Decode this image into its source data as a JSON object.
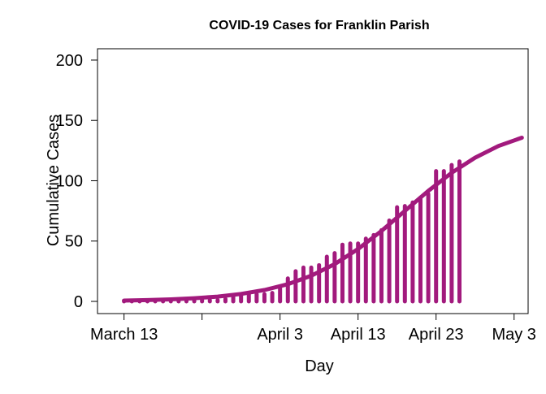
{
  "chart_data": {
    "type": "line",
    "title": "COVID-19 Cases for Franklin Parish",
    "x_label": "Day",
    "y_label": "Cumulative Cases",
    "xlim": [
      -3.4,
      51.8
    ],
    "ylim": [
      -10.1,
      209.4
    ],
    "xticks": [
      {
        "value": 0,
        "label": "March 13"
      },
      {
        "value": 10,
        "label": null
      },
      {
        "value": 20,
        "label": "April 3"
      },
      {
        "value": 30,
        "label": "April 13"
      },
      {
        "value": 40,
        "label": "April 23"
      },
      {
        "value": 50,
        "label": "May 3"
      }
    ],
    "yticks": [
      0,
      50,
      100,
      150,
      200
    ],
    "series": [
      {
        "style": "spike",
        "color": "#a21a7d",
        "x": [
          0,
          1,
          2,
          3,
          4,
          5,
          6,
          7,
          8,
          9,
          10,
          11,
          12,
          13,
          14,
          15,
          16,
          17,
          18,
          19,
          20,
          21,
          22,
          23,
          24,
          25,
          26,
          27,
          28,
          29,
          30,
          31,
          32,
          33,
          34,
          35,
          36,
          37,
          38,
          39,
          40,
          41,
          42,
          43
        ],
        "values": [
          0,
          0,
          0,
          0,
          1,
          1,
          1,
          1,
          1,
          1,
          1,
          1,
          1,
          2,
          4,
          5,
          6,
          6,
          6,
          7,
          12,
          19,
          25,
          28,
          28,
          30,
          37,
          40,
          47,
          48,
          48,
          52,
          55,
          59,
          67,
          78,
          79,
          82,
          86,
          89,
          108,
          108,
          113,
          116
        ]
      },
      {
        "style": "curve",
        "color": "#a21a7d",
        "x": [
          0,
          3,
          6,
          9,
          12,
          15,
          18,
          21,
          24,
          27,
          30,
          33,
          36,
          39,
          42,
          45,
          48,
          51
        ],
        "values": [
          0.7,
          1.1,
          1.7,
          2.6,
          4.0,
          6.2,
          9.4,
          14.3,
          21.3,
          30.9,
          43.4,
          58.4,
          75.0,
          91.6,
          106.6,
          119.1,
          128.8,
          135.7
        ]
      }
    ]
  }
}
